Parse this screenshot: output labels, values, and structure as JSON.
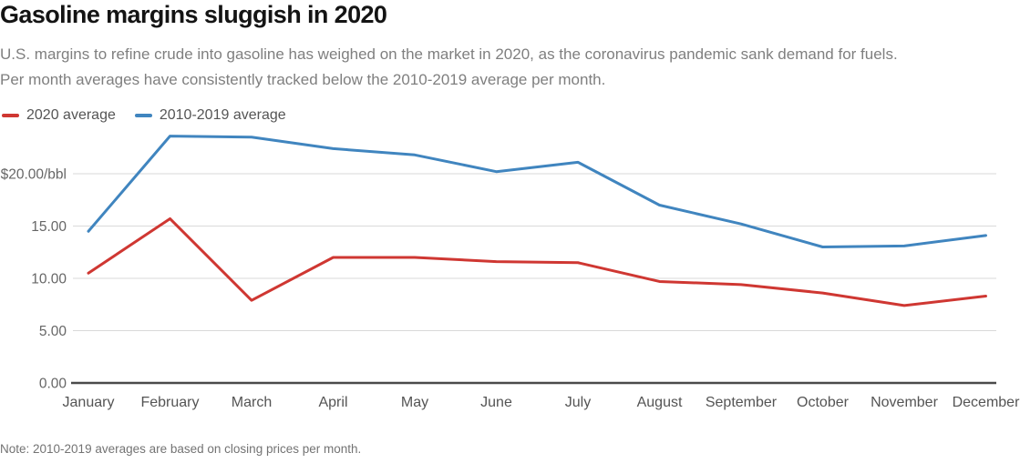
{
  "header": {
    "title": "Gasoline margins sluggish in 2020",
    "subtitle_lines": [
      "U.S. margins to refine crude into gasoline has weighed on the market in 2020, as the coronavirus pandemic sank demand for fuels.",
      "Per month averages have consistently tracked below the 2010-2019 average per month."
    ]
  },
  "chart_data": {
    "type": "line",
    "title": "Gasoline margins sluggish in 2020",
    "categories": [
      "January",
      "February",
      "March",
      "April",
      "May",
      "June",
      "July",
      "August",
      "September",
      "October",
      "November",
      "December"
    ],
    "series": [
      {
        "name": "2020 average",
        "color": "#cf3732",
        "values": [
          10.5,
          15.7,
          7.9,
          12.0,
          12.0,
          11.6,
          11.5,
          9.7,
          9.4,
          8.6,
          7.4,
          8.3
        ]
      },
      {
        "name": "2010-2019 average",
        "color": "#4085bf",
        "values": [
          14.5,
          23.6,
          23.5,
          22.4,
          21.8,
          20.2,
          21.1,
          17.0,
          15.2,
          13.0,
          13.1,
          14.1
        ]
      }
    ],
    "y_ticks": [
      {
        "value": 0,
        "label": "0.00"
      },
      {
        "value": 5,
        "label": "5.00"
      },
      {
        "value": 10,
        "label": "10.00"
      },
      {
        "value": 15,
        "label": "15.00"
      },
      {
        "value": 20,
        "label": "$20.00/bbl"
      }
    ],
    "ylim": [
      0,
      25
    ],
    "grid": "horizontal",
    "legend_position": "top-left"
  },
  "footer": {
    "note": "Note: 2010-2019 averages are based on closing prices per month."
  },
  "colors": {
    "background": "#ffffff",
    "title": "#141414",
    "subtitle": "#7f7f7f",
    "gridline": "#d9d9d9",
    "axis": "#4b4b4b",
    "tick_label": "#666666",
    "month_label": "#545454",
    "note": "#737373"
  }
}
